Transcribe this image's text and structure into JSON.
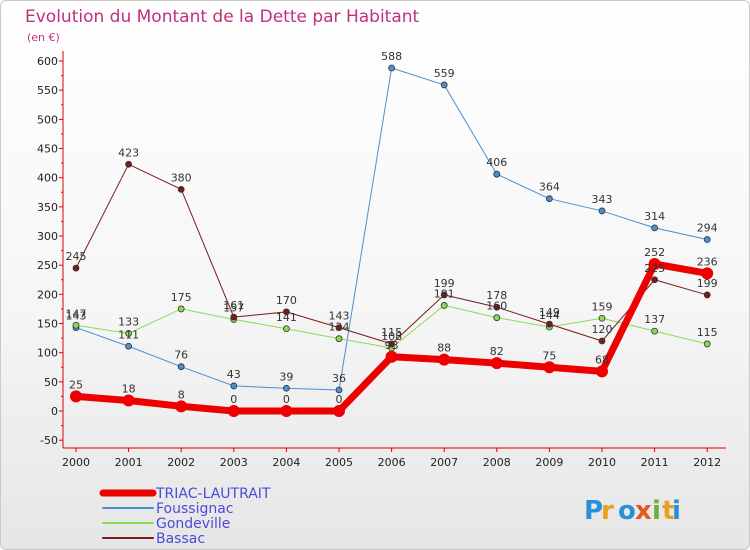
{
  "colors": {
    "title": "#c0307a",
    "legend_text": "#4a4adc",
    "axis": "#dd0000"
  },
  "logo": "Proxiti",
  "chart_data": {
    "type": "line",
    "title": "Evolution du Montant de la Dette par Habitant",
    "subtitle": "(en €)",
    "xlabel": "",
    "ylabel": "",
    "ylim": [
      -50,
      600
    ],
    "y_ticks": [
      -50,
      0,
      50,
      100,
      150,
      200,
      250,
      300,
      350,
      400,
      450,
      500,
      550,
      600
    ],
    "categories": [
      "2000",
      "2001",
      "2002",
      "2003",
      "2004",
      "2005",
      "2006",
      "2007",
      "2008",
      "2009",
      "2010",
      "2011",
      "2012"
    ],
    "grid": false,
    "legend_position": "bottom-left",
    "series": [
      {
        "name": "Foussignac",
        "color": "#4a8fd0",
        "width": 1,
        "values": [
          143,
          111,
          76,
          43,
          39,
          36,
          588,
          559,
          406,
          364,
          343,
          314,
          294
        ]
      },
      {
        "name": "Gondeville",
        "color": "#88dd55",
        "width": 1,
        "values": [
          147,
          133,
          175,
          157,
          141,
          124,
          108,
          181,
          160,
          144,
          159,
          137,
          115
        ]
      },
      {
        "name": "Bassac",
        "color": "#7a1a1a",
        "width": 1,
        "values": [
          245,
          423,
          380,
          161,
          170,
          143,
          115,
          199,
          178,
          149,
          120,
          225,
          199
        ]
      },
      {
        "name": "TRIAC-LAUTRAIT",
        "color": "#ee0000",
        "width": 7,
        "values": [
          25,
          18,
          8,
          0,
          0,
          0,
          93,
          88,
          82,
          75,
          68,
          252,
          236
        ]
      }
    ],
    "legend_order": [
      "TRIAC-LAUTRAIT",
      "Foussignac",
      "Gondeville",
      "Bassac"
    ]
  }
}
